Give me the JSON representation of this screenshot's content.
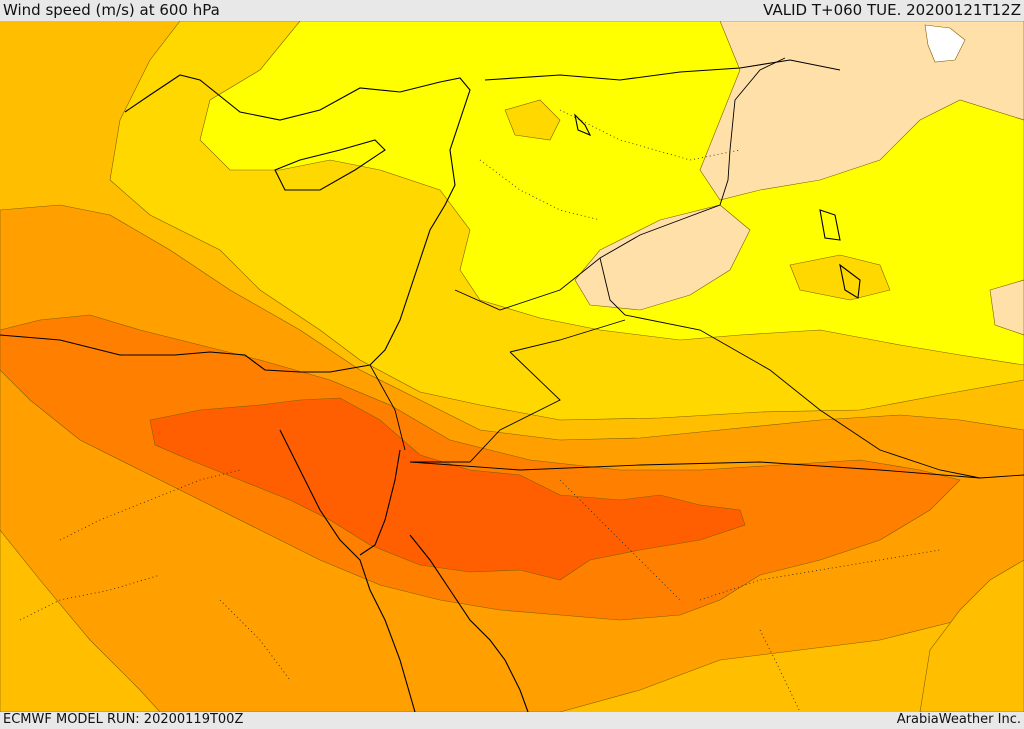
{
  "header": {
    "title": "Wind speed (m/s) at 600 hPa",
    "valid": "VALID T+060 TUE. 20200121T12Z"
  },
  "footer": {
    "model_run": "ECMWF MODEL RUN: 20200119T00Z",
    "credit": "ArabiaWeather Inc."
  },
  "colors": {
    "band_lightest": "#ffe0a8",
    "band_yellow": "#ffff00",
    "band_gold": "#ffd800",
    "band_amber": "#ffbf00",
    "band_orange": "#ff9f00",
    "band_dark_orange": "#ff7f00",
    "band_red_orange": "#ff5f00",
    "coastline": "#000000",
    "border": "#000000"
  }
}
